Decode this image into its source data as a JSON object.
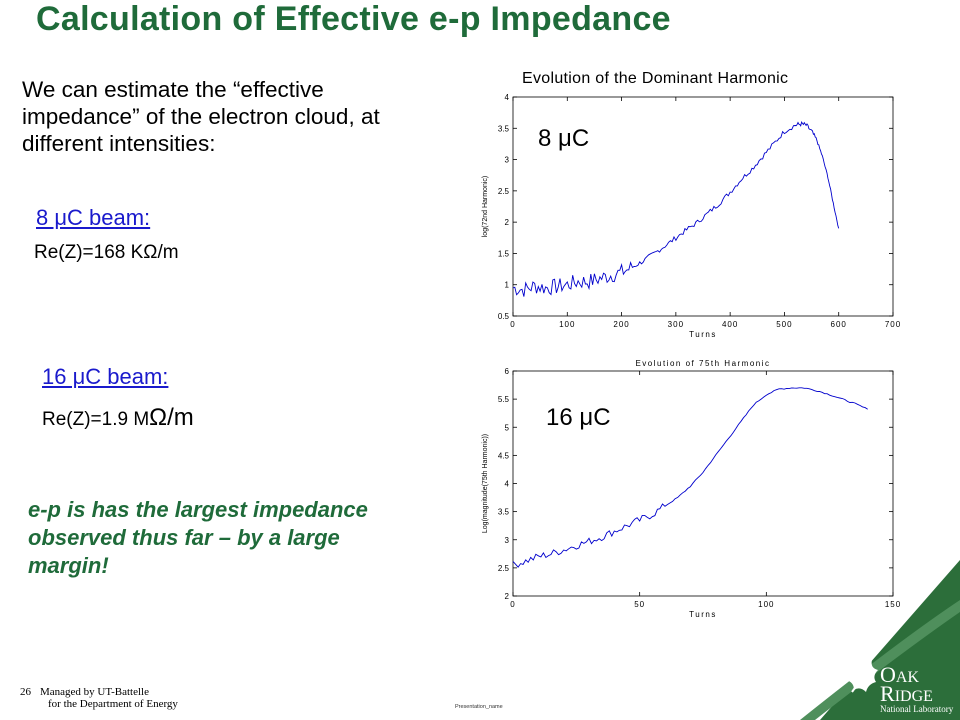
{
  "slide": {
    "title": "Calculation of Effective e-p Impedance",
    "intro": "We can estimate the “effective impedance” of the electron cloud, at different intensities:",
    "beam1": {
      "heading": "8 μC beam:",
      "result": "Re(Z)=168 KΩ/m"
    },
    "beam2": {
      "heading": "16 μC beam:",
      "result_prefix": "Re(Z)=1.9 M",
      "result_unit": "Ω/m"
    },
    "conclusion": "e-p is has the largest impedance observed thus far – by a large margin!"
  },
  "chart_data": [
    {
      "type": "line",
      "title": "Evolution of the Dominant Harmonic",
      "annotation": "8 μC",
      "xlabel": "Turns",
      "ylabel": "log(72nd Harmonic)",
      "xlim": [
        0,
        700
      ],
      "ylim": [
        0.5,
        4
      ],
      "x_ticks": [
        "0",
        "100",
        "200",
        "300",
        "400",
        "500",
        "600",
        "700"
      ],
      "y_ticks": [
        "0.5",
        "1",
        "1.5",
        "2",
        "2.5",
        "3",
        "3.5",
        "4"
      ],
      "series": [
        {
          "color": "#0000cc",
          "x": [
            0,
            20,
            40,
            60,
            80,
            100,
            120,
            140,
            160,
            180,
            200,
            220,
            240,
            260,
            280,
            300,
            320,
            340,
            360,
            380,
            400,
            420,
            440,
            460,
            480,
            500,
            520,
            530,
            540,
            550,
            560,
            570,
            580,
            590,
            600
          ],
          "y": [
            0.95,
            0.92,
            0.98,
            0.95,
            0.97,
            1.0,
            1.05,
            1.05,
            1.1,
            1.15,
            1.2,
            1.28,
            1.38,
            1.5,
            1.62,
            1.75,
            1.88,
            2.0,
            2.15,
            2.3,
            2.48,
            2.68,
            2.85,
            3.05,
            3.25,
            3.45,
            3.55,
            3.57,
            3.55,
            3.45,
            3.3,
            3.05,
            2.72,
            2.3,
            1.9
          ]
        }
      ],
      "grid": false
    },
    {
      "type": "line",
      "title": "Evolution of 75th Harmonic",
      "annotation": "16 μC",
      "xlabel": "Turns",
      "ylabel": "Log(magnitude(75th Harmonic))",
      "xlim": [
        0,
        150
      ],
      "ylim": [
        2,
        6
      ],
      "x_ticks": [
        "0",
        "50",
        "100",
        "150"
      ],
      "y_ticks": [
        "2",
        "2.5",
        "3",
        "3.5",
        "4",
        "4.5",
        "5",
        "5.5",
        "6"
      ],
      "series": [
        {
          "color": "#0000cc",
          "x": [
            0,
            5,
            10,
            15,
            20,
            25,
            30,
            35,
            40,
            45,
            50,
            55,
            60,
            65,
            70,
            75,
            80,
            85,
            90,
            95,
            100,
            105,
            110,
            115,
            120,
            125,
            130,
            135,
            140
          ],
          "y": [
            2.55,
            2.62,
            2.7,
            2.75,
            2.82,
            2.9,
            2.97,
            3.05,
            3.15,
            3.25,
            3.35,
            3.45,
            3.6,
            3.75,
            3.95,
            4.2,
            4.5,
            4.8,
            5.1,
            5.4,
            5.58,
            5.68,
            5.7,
            5.7,
            5.65,
            5.58,
            5.5,
            5.42,
            5.32
          ]
        }
      ],
      "grid": false
    }
  ],
  "footer": {
    "page_number": "26",
    "managed_line1": "Managed by UT-Battelle",
    "managed_line2": "for the Department of Energy",
    "presentation_name": "Presentation_name"
  },
  "logo": {
    "line1_cap": "O",
    "line1_rest": "AK",
    "line2_cap": "R",
    "line2_rest": "IDGE",
    "line3": "National Laboratory"
  },
  "colors": {
    "title_green": "#1f6b3a",
    "link_blue": "#1a1acc",
    "plot_blue": "#0000cc",
    "logo_green": "#2c6e3a"
  }
}
